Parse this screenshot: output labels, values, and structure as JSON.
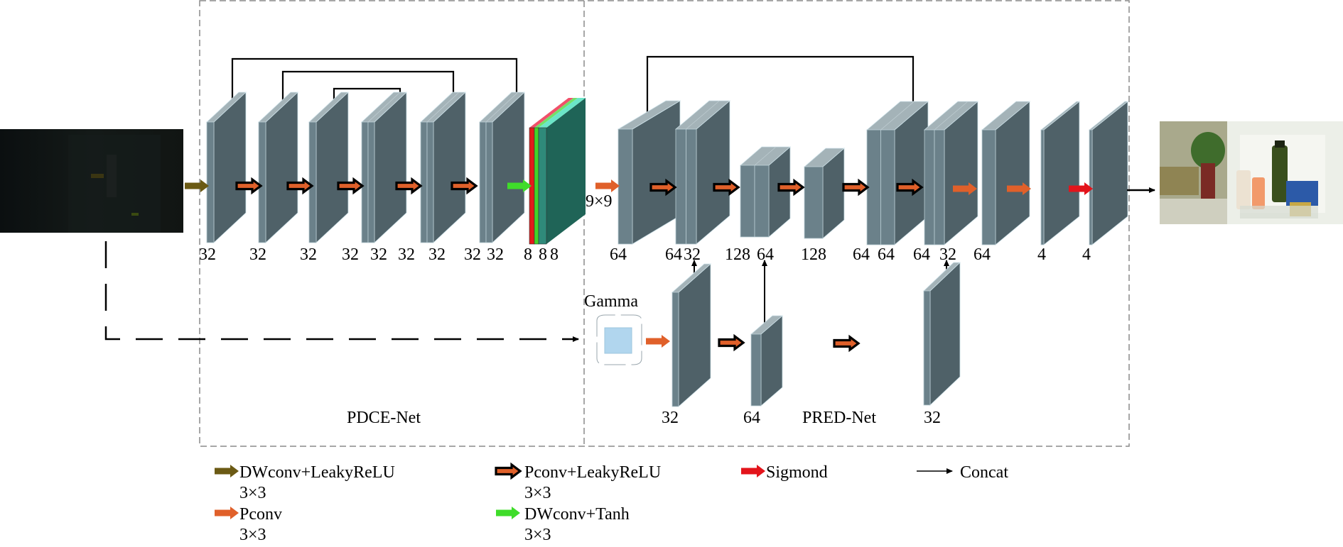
{
  "sections": {
    "pdce": "PDCE-Net",
    "pred": "PRED-Net"
  },
  "gamma_label": "Gamma",
  "kernel_label": "9×9",
  "images": {
    "input": "low-light input photo (dark refrigerator door scene)",
    "output": "enhanced output photo (refrigerator door with bottles)"
  },
  "pdce_blocks": [
    {
      "channels": [
        "32"
      ]
    },
    {
      "channels": [
        "32"
      ]
    },
    {
      "channels": [
        "32"
      ]
    },
    {
      "channels": [
        "32",
        "32"
      ]
    },
    {
      "channels": [
        "32",
        "32"
      ]
    },
    {
      "channels": [
        "32",
        "32"
      ]
    },
    {
      "channels": [
        "8",
        "8",
        "8"
      ]
    }
  ],
  "pred_top_blocks": [
    {
      "channels": [
        "64"
      ]
    },
    {
      "channels": [
        "64",
        "32"
      ]
    },
    {
      "channels": [
        "128",
        "64"
      ]
    },
    {
      "channels": [
        "128"
      ]
    },
    {
      "channels": [
        "64",
        "64"
      ]
    },
    {
      "channels": [
        "64",
        "32"
      ]
    },
    {
      "channels": [
        "64"
      ]
    },
    {
      "channels": [
        "4"
      ]
    },
    {
      "channels": [
        "4"
      ]
    }
  ],
  "pred_bottom_blocks": [
    {
      "channels": [
        "32"
      ]
    },
    {
      "channels": [
        "64"
      ]
    },
    {
      "channels": [
        "32"
      ]
    }
  ],
  "legend": [
    {
      "label": "DWconv+LeakyReLU",
      "sub": "3×3",
      "color": "#6b5a14",
      "outlined": false
    },
    {
      "label": "Pconv",
      "sub": "3×3",
      "color": "#e0602a",
      "outlined": false
    },
    {
      "label": "Pconv+LeakyReLU",
      "sub": "3×3",
      "color": "#e0602a",
      "outlined": true
    },
    {
      "label": "DWconv+Tanh",
      "sub": "3×3",
      "color": "#3fdc2a",
      "outlined": false
    },
    {
      "label": "Sigmond",
      "sub": "",
      "color": "#e3141b",
      "outlined": false
    },
    {
      "label": "Concat",
      "sub": "",
      "color": "#000000",
      "outlined": false
    }
  ],
  "colors": {
    "block_front": "#6b818a",
    "block_side": "#4f6168",
    "block_top": "#a4b3b8",
    "frame": "#8a8a8a",
    "gamma_fill": "#b1d6ee"
  }
}
